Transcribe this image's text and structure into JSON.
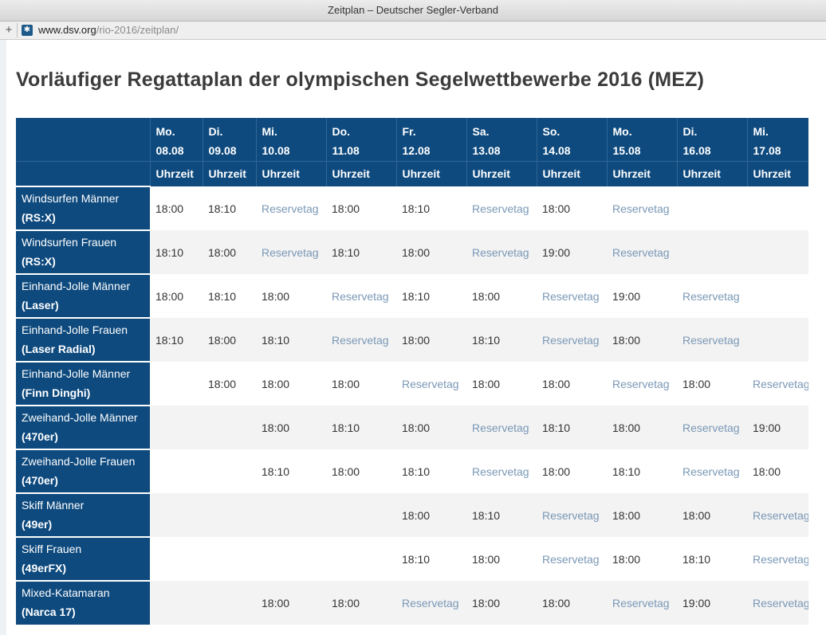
{
  "window": {
    "title": "Zeitplan – Deutscher Segler-Verband"
  },
  "address": {
    "domain": "www.dsv.org",
    "path": "/rio-2016/zeitplan/"
  },
  "page": {
    "heading": "Vorläufiger Regattaplan der olympischen Segelwettbewerbe 2016 (MEZ)"
  },
  "table": {
    "days": [
      {
        "day": "Mo.",
        "date": "08.08"
      },
      {
        "day": "Di.",
        "date": "09.08"
      },
      {
        "day": "Mi.",
        "date": "10.08"
      },
      {
        "day": "Do.",
        "date": "11.08"
      },
      {
        "day": "Fr.",
        "date": "12.08"
      },
      {
        "day": "Sa.",
        "date": "13.08"
      },
      {
        "day": "So.",
        "date": "14.08"
      },
      {
        "day": "Mo.",
        "date": "15.08"
      },
      {
        "day": "Di.",
        "date": "16.08"
      },
      {
        "day": "Mi.",
        "date": "17.08"
      }
    ],
    "unit_label": "Uhrzeit",
    "rows": [
      {
        "name": "Windsurfen Männer",
        "cls": "(RS:X)",
        "cells": [
          "18:00",
          "18:10",
          "Reservetag",
          "18:00",
          "18:10",
          "Reservetag",
          "18:00",
          "Reservetag",
          "",
          ""
        ]
      },
      {
        "name": "Windsurfen Frauen",
        "cls": "(RS:X)",
        "cells": [
          "18:10",
          "18:00",
          "Reservetag",
          "18:10",
          "18:00",
          "Reservetag",
          "19:00",
          "Reservetag",
          "",
          ""
        ]
      },
      {
        "name": "Einhand-Jolle Männer",
        "cls": "(Laser)",
        "cells": [
          "18:00",
          "18:10",
          "18:00",
          "Reservetag",
          "18:10",
          "18:00",
          "Reservetag",
          "19:00",
          "Reservetag",
          ""
        ]
      },
      {
        "name": "Einhand-Jolle Frauen",
        "cls": "(Laser Radial)",
        "cells": [
          "18:10",
          "18:00",
          "18:10",
          "Reservetag",
          "18:00",
          "18:10",
          "Reservetag",
          "18:00",
          "Reservetag",
          ""
        ]
      },
      {
        "name": "Einhand-Jolle Männer",
        "cls": "(Finn Dinghi)",
        "cells": [
          "",
          "18:00",
          "18:00",
          "18:00",
          "Reservetag",
          "18:00",
          "18:00",
          "Reservetag",
          "18:00",
          "Reservetag"
        ]
      },
      {
        "name": "Zweihand-Jolle Männer",
        "cls": "(470er)",
        "cells": [
          "",
          "",
          "18:00",
          "18:10",
          "18:00",
          "Reservetag",
          "18:10",
          "18:00",
          "Reservetag",
          "19:00"
        ]
      },
      {
        "name": "Zweihand-Jolle Frauen",
        "cls": "(470er)",
        "cells": [
          "",
          "",
          "18:10",
          "18:00",
          "18:10",
          "Reservetag",
          "18:00",
          "18:10",
          "Reservetag",
          "18:00"
        ]
      },
      {
        "name": "Skiff Männer",
        "cls": "(49er)",
        "cells": [
          "",
          "",
          "",
          "",
          "18:00",
          "18:10",
          "Reservetag",
          "18:00",
          "18:00",
          "Reservetag"
        ]
      },
      {
        "name": "Skiff Frauen",
        "cls": "(49erFX)",
        "cells": [
          "",
          "",
          "",
          "",
          "18:10",
          "18:00",
          "Reservetag",
          "18:00",
          "18:10",
          "Reservetag"
        ]
      },
      {
        "name": "Mixed-Katamaran",
        "cls": "(Narca 17)",
        "cells": [
          "",
          "",
          "18:00",
          "18:00",
          "Reservetag",
          "18:00",
          "18:00",
          "Reservetag",
          "19:00",
          "Reservetag"
        ]
      }
    ]
  },
  "colors": {
    "header_bg": "#0e4a7e",
    "reserve_text": "#7a98b6",
    "stripe": "#f3f3f3"
  }
}
